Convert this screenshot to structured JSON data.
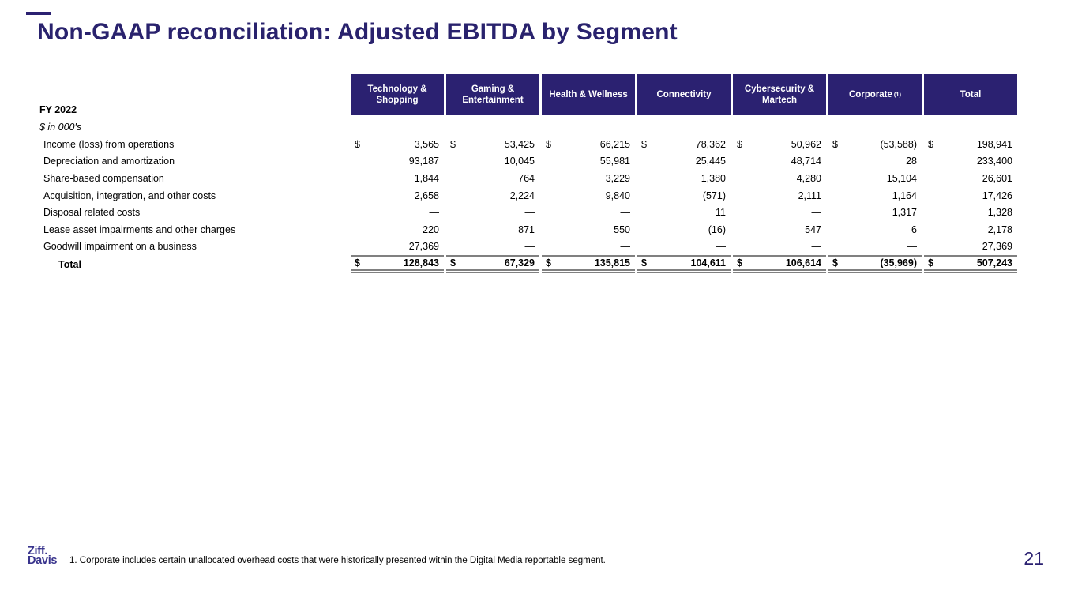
{
  "slide": {
    "title": "Non-GAAP reconciliation: Adjusted EBITDA by Segment",
    "page_number": "21",
    "footnote": "1. Corporate includes certain unallocated overhead costs that were historically presented within the Digital Media reportable segment.",
    "logo": {
      "line1": "Ziff.",
      "line2": "Davis"
    }
  },
  "colors": {
    "accent": "#2B2171",
    "header_background": "#2B2171",
    "header_text": "#FFFFFF",
    "rule_gray": "#808080"
  },
  "table": {
    "period_label": "FY 2022",
    "units_label": "$ in 000's",
    "columns": [
      {
        "label": "Technology & Shopping"
      },
      {
        "label": "Gaming & Entertainment"
      },
      {
        "label": "Health & Wellness"
      },
      {
        "label": "Connectivity"
      },
      {
        "label": "Cybersecurity & Martech"
      },
      {
        "label": "Corporate",
        "sup": "(1)"
      },
      {
        "label": "Total"
      }
    ],
    "rows": [
      {
        "label": "Income (loss) from operations",
        "dollar": true,
        "values": [
          "3,565",
          "53,425",
          "66,215",
          "78,362",
          "50,962",
          "(53,588)",
          "198,941"
        ]
      },
      {
        "label": "Depreciation and amortization",
        "values": [
          "93,187",
          "10,045",
          "55,981",
          "25,445",
          "48,714",
          "28",
          "233,400"
        ]
      },
      {
        "label": "Share-based compensation",
        "values": [
          "1,844",
          "764",
          "3,229",
          "1,380",
          "4,280",
          "15,104",
          "26,601"
        ]
      },
      {
        "label": "Acquisition, integration, and other costs",
        "values": [
          "2,658",
          "2,224",
          "9,840",
          "(571)",
          "2,111",
          "1,164",
          "17,426"
        ]
      },
      {
        "label": "Disposal related costs",
        "values": [
          "—",
          "—",
          "—",
          "11",
          "—",
          "1,317",
          "1,328"
        ]
      },
      {
        "label": "Lease asset impairments and other charges",
        "values": [
          "220",
          "871",
          "550",
          "(16)",
          "547",
          "6",
          "2,178"
        ]
      },
      {
        "label": "Goodwill impairment on a business",
        "values": [
          "27,369",
          "—",
          "—",
          "—",
          "—",
          "—",
          "27,369"
        ]
      }
    ],
    "total_row": {
      "label": "Total",
      "dollar": true,
      "values": [
        "128,843",
        "67,329",
        "135,815",
        "104,611",
        "106,614",
        "(35,969)",
        "507,243"
      ]
    }
  }
}
